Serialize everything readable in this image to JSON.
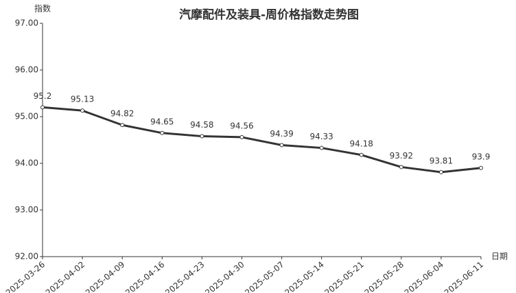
{
  "chart_data": {
    "type": "line",
    "title": "汽摩配件及装具-周价格指数走势图",
    "y_label": "指数",
    "x_label": "日期",
    "categories": [
      "2025-03-26",
      "2025-04-02",
      "2025-04-09",
      "2025-04-16",
      "2025-04-23",
      "2025-04-30",
      "2025-05-07",
      "2025-05-14",
      "2025-05-21",
      "2025-05-28",
      "2025-06-04",
      "2025-06-11"
    ],
    "values": [
      95.2,
      95.13,
      94.82,
      94.65,
      94.58,
      94.56,
      94.39,
      94.33,
      94.18,
      93.92,
      93.81,
      93.9
    ],
    "color": "#333333",
    "ylim": [
      92,
      97
    ],
    "yticks": [
      {
        "value": 92,
        "label": "92.00"
      },
      {
        "value": 93,
        "label": "93.00"
      },
      {
        "value": 94,
        "label": "94.00"
      },
      {
        "value": 95,
        "label": "95.00"
      },
      {
        "value": 96,
        "label": "96.00"
      },
      {
        "value": 97,
        "label": "97.00"
      }
    ],
    "grid": false
  }
}
